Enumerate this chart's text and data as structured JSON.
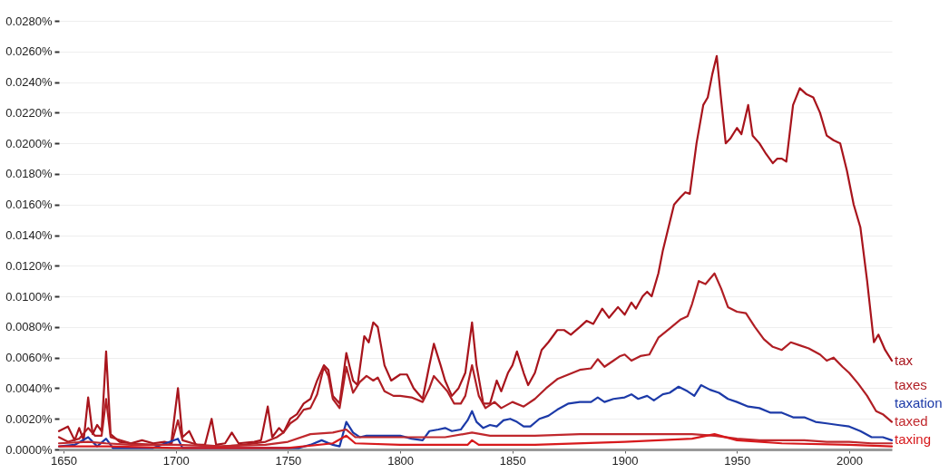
{
  "chart_data": {
    "type": "line",
    "xlim": [
      1648,
      2019
    ],
    "xticks": [
      1650,
      1700,
      1750,
      1800,
      1850,
      1900,
      1950,
      2000
    ],
    "ylim": [
      0,
      0.028
    ],
    "yticks": [
      {
        "value": 0,
        "label": "0.0000%"
      },
      {
        "value": 0.002,
        "label": "0.0020%"
      },
      {
        "value": 0.004,
        "label": "0.0040%"
      },
      {
        "value": 0.006,
        "label": "0.0060%"
      },
      {
        "value": 0.008,
        "label": "0.0080%"
      },
      {
        "value": 0.01,
        "label": "0.0100%"
      },
      {
        "value": 0.012,
        "label": "0.0120%"
      },
      {
        "value": 0.014,
        "label": "0.0140%"
      },
      {
        "value": 0.016,
        "label": "0.0160%"
      },
      {
        "value": 0.018,
        "label": "0.0180%"
      },
      {
        "value": 0.02,
        "label": "0.0200%"
      },
      {
        "value": 0.022,
        "label": "0.0220%"
      },
      {
        "value": 0.024,
        "label": "0.0240%"
      },
      {
        "value": 0.026,
        "label": "0.0260%"
      },
      {
        "value": 0.028,
        "label": "0.0280%"
      }
    ],
    "grid": "y",
    "legend": false,
    "marker": "none",
    "line_style": "solid",
    "series": [
      {
        "name": "tax",
        "color": "#a8141c",
        "x": [
          1648,
          1652,
          1655,
          1657,
          1659,
          1661,
          1663,
          1665,
          1667,
          1669,
          1671,
          1675,
          1680,
          1685,
          1690,
          1695,
          1698,
          1701,
          1703,
          1706,
          1709,
          1713,
          1716,
          1718,
          1722,
          1725,
          1728,
          1735,
          1738,
          1741,
          1743,
          1746,
          1748,
          1751,
          1754,
          1757,
          1760,
          1763,
          1766,
          1768,
          1770,
          1773,
          1776,
          1779,
          1781,
          1784,
          1786,
          1788,
          1790,
          1793,
          1796,
          1800,
          1803,
          1806,
          1810,
          1813,
          1815,
          1818,
          1820,
          1823,
          1826,
          1829,
          1832,
          1834,
          1837,
          1840,
          1843,
          1845,
          1848,
          1850,
          1852,
          1855,
          1857,
          1860,
          1863,
          1866,
          1870,
          1873,
          1876,
          1880,
          1883,
          1886,
          1890,
          1893,
          1897,
          1900,
          1903,
          1905,
          1908,
          1910,
          1912,
          1915,
          1917,
          1920,
          1922,
          1925,
          1927,
          1929,
          1932,
          1935,
          1937,
          1939,
          1941,
          1943,
          1945,
          1947,
          1950,
          1952,
          1955,
          1957,
          1960,
          1963,
          1966,
          1968,
          1970,
          1972,
          1975,
          1978,
          1981,
          1984,
          1987,
          1990,
          1993,
          1996,
          1999,
          2002,
          2005,
          2008,
          2011,
          2013,
          2016,
          2019
        ],
        "values": [
          0.0012,
          0.0015,
          0.0006,
          0.0014,
          0.0006,
          0.0034,
          0.001,
          0.0016,
          0.0012,
          0.0064,
          0.001,
          0.0005,
          0.0004,
          0.0006,
          0.0004,
          0.0005,
          0.0004,
          0.004,
          0.0008,
          0.0012,
          0.0003,
          0.0003,
          0.002,
          0.0003,
          0.0004,
          0.0011,
          0.0004,
          0.0005,
          0.0006,
          0.0028,
          0.0008,
          0.0014,
          0.0011,
          0.002,
          0.0023,
          0.003,
          0.0033,
          0.0045,
          0.0055,
          0.0052,
          0.0035,
          0.003,
          0.0063,
          0.0045,
          0.0042,
          0.0074,
          0.007,
          0.0083,
          0.008,
          0.0055,
          0.0045,
          0.0049,
          0.0049,
          0.004,
          0.0033,
          0.0055,
          0.0069,
          0.0055,
          0.0045,
          0.0035,
          0.004,
          0.005,
          0.0083,
          0.0055,
          0.003,
          0.003,
          0.0045,
          0.0038,
          0.005,
          0.0055,
          0.0064,
          0.005,
          0.0042,
          0.005,
          0.0065,
          0.007,
          0.0078,
          0.0078,
          0.0075,
          0.008,
          0.0084,
          0.0082,
          0.0092,
          0.0086,
          0.0093,
          0.0088,
          0.0096,
          0.0092,
          0.01,
          0.0103,
          0.01,
          0.0115,
          0.013,
          0.0148,
          0.016,
          0.0165,
          0.0168,
          0.0167,
          0.02,
          0.0225,
          0.023,
          0.0245,
          0.0257,
          0.0228,
          0.02,
          0.0203,
          0.021,
          0.0206,
          0.0225,
          0.0205,
          0.02,
          0.0193,
          0.0187,
          0.019,
          0.019,
          0.0188,
          0.0225,
          0.0236,
          0.0232,
          0.023,
          0.022,
          0.0205,
          0.0202,
          0.02,
          0.0182,
          0.016,
          0.0145,
          0.011,
          0.007,
          0.0075,
          0.0065,
          0.0058
        ]
      },
      {
        "name": "taxes",
        "color": "#b01e24",
        "x": [
          1648,
          1652,
          1657,
          1661,
          1664,
          1667,
          1669,
          1671,
          1680,
          1690,
          1698,
          1701,
          1703,
          1710,
          1720,
          1730,
          1740,
          1745,
          1748,
          1751,
          1754,
          1757,
          1760,
          1763,
          1766,
          1768,
          1770,
          1773,
          1776,
          1779,
          1782,
          1785,
          1788,
          1790,
          1793,
          1797,
          1800,
          1805,
          1810,
          1813,
          1815,
          1818,
          1821,
          1824,
          1827,
          1829,
          1832,
          1835,
          1838,
          1842,
          1845,
          1850,
          1855,
          1860,
          1865,
          1870,
          1875,
          1880,
          1885,
          1888,
          1891,
          1895,
          1898,
          1900,
          1903,
          1907,
          1911,
          1915,
          1920,
          1925,
          1928,
          1930,
          1933,
          1936,
          1940,
          1943,
          1946,
          1950,
          1954,
          1958,
          1962,
          1966,
          1970,
          1974,
          1978,
          1982,
          1987,
          1990,
          1993,
          1997,
          2000,
          2004,
          2008,
          2012,
          2015,
          2019
        ],
        "values": [
          0.0008,
          0.0005,
          0.0007,
          0.0014,
          0.0009,
          0.0009,
          0.0033,
          0.0008,
          0.0004,
          0.0003,
          0.0003,
          0.0019,
          0.0006,
          0.0003,
          0.0002,
          0.0003,
          0.0005,
          0.0008,
          0.0011,
          0.0017,
          0.002,
          0.0026,
          0.0027,
          0.0036,
          0.0054,
          0.0048,
          0.0033,
          0.0027,
          0.0054,
          0.0037,
          0.0044,
          0.0048,
          0.0045,
          0.0047,
          0.0038,
          0.0035,
          0.0035,
          0.0034,
          0.0031,
          0.004,
          0.0048,
          0.0043,
          0.0038,
          0.003,
          0.003,
          0.0035,
          0.0055,
          0.0035,
          0.0027,
          0.0031,
          0.0027,
          0.0031,
          0.0028,
          0.0033,
          0.004,
          0.0046,
          0.0049,
          0.0052,
          0.0053,
          0.0059,
          0.0054,
          0.0058,
          0.0061,
          0.0062,
          0.0058,
          0.0061,
          0.0062,
          0.0073,
          0.0079,
          0.0085,
          0.0087,
          0.0095,
          0.011,
          0.0108,
          0.0115,
          0.0105,
          0.0093,
          0.009,
          0.0089,
          0.008,
          0.0072,
          0.0067,
          0.0065,
          0.007,
          0.0068,
          0.0066,
          0.0062,
          0.0058,
          0.006,
          0.0054,
          0.005,
          0.0043,
          0.0035,
          0.0025,
          0.0023,
          0.0018
        ]
      },
      {
        "name": "taxation",
        "color": "#1c3aa8",
        "x": [
          1648,
          1655,
          1661,
          1665,
          1669,
          1672,
          1690,
          1701,
          1703,
          1755,
          1760,
          1765,
          1770,
          1773,
          1776,
          1779,
          1782,
          1785,
          1790,
          1795,
          1800,
          1805,
          1810,
          1813,
          1817,
          1820,
          1823,
          1827,
          1830,
          1832,
          1834,
          1837,
          1840,
          1843,
          1846,
          1849,
          1852,
          1855,
          1858,
          1862,
          1866,
          1870,
          1875,
          1880,
          1885,
          1888,
          1891,
          1895,
          1900,
          1903,
          1906,
          1910,
          1913,
          1917,
          1920,
          1924,
          1928,
          1931,
          1934,
          1938,
          1942,
          1946,
          1950,
          1955,
          1960,
          1965,
          1970,
          1975,
          1980,
          1985,
          1990,
          1995,
          2000,
          2005,
          2010,
          2015,
          2019
        ],
        "values": [
          0.0002,
          0.0003,
          0.0008,
          0.0002,
          0.0007,
          0.0001,
          0.0001,
          0.0007,
          0.0001,
          0.0001,
          0.0003,
          0.0006,
          0.0003,
          0.0002,
          0.0018,
          0.0011,
          0.0008,
          0.0009,
          0.0009,
          0.0009,
          0.0009,
          0.0007,
          0.0006,
          0.0012,
          0.0013,
          0.0014,
          0.0012,
          0.0013,
          0.0019,
          0.0025,
          0.0018,
          0.0014,
          0.0016,
          0.0015,
          0.0019,
          0.002,
          0.0018,
          0.0015,
          0.0015,
          0.002,
          0.0022,
          0.0026,
          0.003,
          0.0031,
          0.0031,
          0.0034,
          0.0031,
          0.0033,
          0.0034,
          0.0036,
          0.0033,
          0.0035,
          0.0032,
          0.0036,
          0.0037,
          0.0041,
          0.0038,
          0.0035,
          0.0042,
          0.0039,
          0.0037,
          0.0033,
          0.0031,
          0.0028,
          0.0027,
          0.0024,
          0.0024,
          0.0021,
          0.0021,
          0.0018,
          0.0017,
          0.0016,
          0.0015,
          0.0012,
          0.0008,
          0.0008,
          0.0006
        ]
      },
      {
        "name": "taxed",
        "color": "#c0282d",
        "x": [
          1648,
          1661,
          1669,
          1680,
          1700,
          1720,
          1740,
          1750,
          1760,
          1770,
          1776,
          1780,
          1800,
          1820,
          1832,
          1840,
          1860,
          1880,
          1900,
          1920,
          1930,
          1940,
          1950,
          1960,
          1970,
          1980,
          1990,
          2000,
          2010,
          2019
        ],
        "values": [
          0.0004,
          0.0005,
          0.0004,
          0.0003,
          0.0003,
          0.0002,
          0.0003,
          0.0005,
          0.001,
          0.0011,
          0.0013,
          0.0008,
          0.0008,
          0.0008,
          0.0011,
          0.0009,
          0.0009,
          0.001,
          0.001,
          0.001,
          0.001,
          0.0009,
          0.0007,
          0.0006,
          0.0006,
          0.0006,
          0.0005,
          0.0005,
          0.0004,
          0.0004
        ]
      },
      {
        "name": "taxing",
        "color": "#d7191c",
        "x": [
          1648,
          1670,
          1700,
          1750,
          1770,
          1776,
          1780,
          1800,
          1830,
          1832,
          1835,
          1860,
          1900,
          1930,
          1940,
          1950,
          1970,
          2000,
          2019
        ],
        "values": [
          0.0002,
          0.0002,
          0.0001,
          0.0001,
          0.0004,
          0.0009,
          0.0004,
          0.0003,
          0.0003,
          0.0006,
          0.0003,
          0.0003,
          0.0005,
          0.0007,
          0.001,
          0.0006,
          0.0004,
          0.0003,
          0.0002
        ]
      }
    ]
  }
}
